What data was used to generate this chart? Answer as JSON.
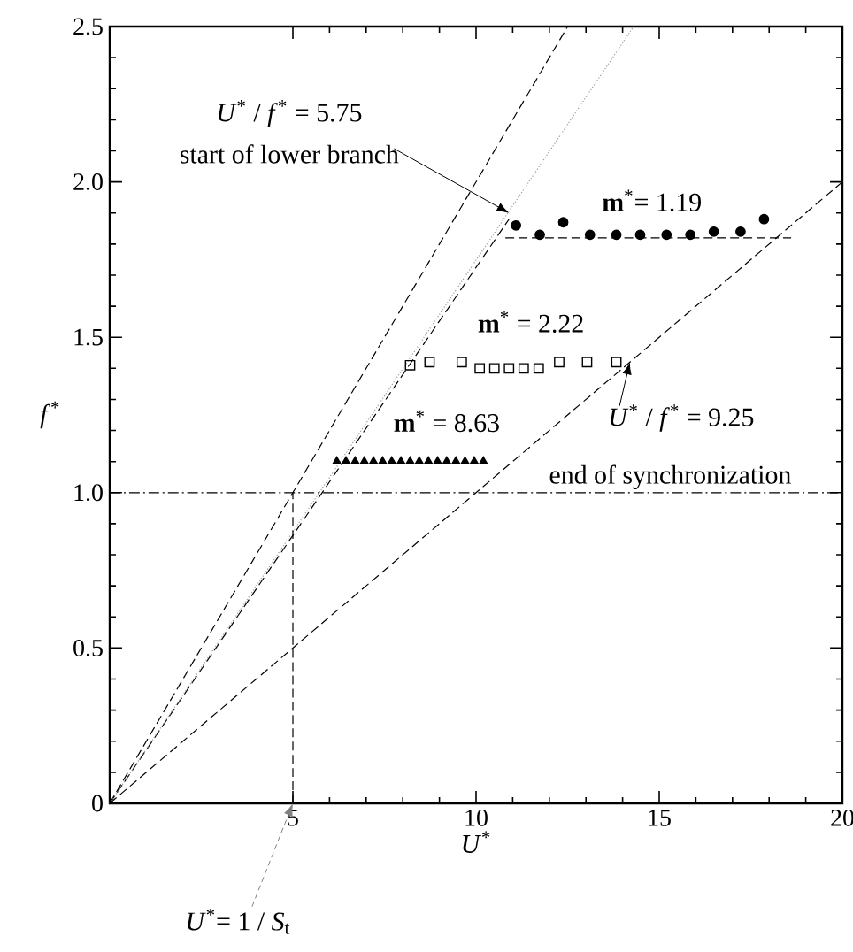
{
  "chart_data": {
    "type": "scatter",
    "xlabel": "*U*$^{*}$",
    "ylabel": "*f*$^{*}$",
    "xlim": [
      0,
      20
    ],
    "ylim": [
      0,
      2.5
    ],
    "xticks": [
      5,
      10,
      15,
      20
    ],
    "yticks": [
      0,
      0.5,
      {
        "value": 1,
        "label": "1.0"
      },
      1.5,
      {
        "value": 2,
        "label": "2.0"
      },
      2.5
    ],
    "grid": false,
    "series": [
      {
        "type": "line",
        "line_style": "dashed",
        "color": "#000000",
        "x": [
          0,
          12.5
        ],
        "values": [
          0,
          2.5
        ]
      },
      {
        "type": "line",
        "line_style": "dashed",
        "color": "#000000",
        "x": [
          0,
          10.9
        ],
        "values": [
          0,
          1.88
        ]
      },
      {
        "type": "line",
        "line_style": "dotted",
        "color": "#999999",
        "x": [
          0,
          14.3
        ],
        "values": [
          0,
          2.5
        ]
      },
      {
        "type": "line",
        "line_style": "dashed",
        "color": "#000000",
        "x": [
          0,
          20
        ],
        "values": [
          0,
          2.0
        ]
      },
      {
        "type": "line",
        "line_style": "dashed",
        "color": "#000000",
        "x": [
          10.8,
          18.6
        ],
        "values": [
          1.82,
          1.82
        ]
      },
      {
        "marker": "circle",
        "color": "#000000",
        "x": [
          11.09,
          11.74,
          12.38,
          13.11,
          13.83,
          14.48,
          15.2,
          15.85,
          16.49,
          17.22,
          17.86
        ],
        "values": [
          1.86,
          1.83,
          1.87,
          1.83,
          1.83,
          1.83,
          1.83,
          1.83,
          1.84,
          1.84,
          1.88
        ]
      },
      {
        "marker": "square",
        "color": "#000000",
        "x": [
          8.2,
          8.73,
          9.61,
          10.1,
          10.5,
          10.9,
          11.3,
          11.71,
          12.27,
          13.03,
          13.83
        ],
        "values": [
          1.41,
          1.42,
          1.42,
          1.4,
          1.4,
          1.4,
          1.4,
          1.4,
          1.42,
          1.42,
          1.42
        ]
      },
      {
        "marker": "triangle",
        "color": "#000000",
        "x": [
          6.2,
          6.45,
          6.7,
          6.95,
          7.2,
          7.45,
          7.7,
          7.95,
          8.2,
          8.45,
          8.7,
          8.95,
          9.2,
          9.45,
          9.7,
          9.95,
          10.2
        ],
        "values": [
          1.1,
          1.1,
          1.1,
          1.1,
          1.1,
          1.1,
          1.1,
          1.1,
          1.1,
          1.1,
          1.1,
          1.1,
          1.1,
          1.1,
          1.1,
          1.1,
          1.1
        ]
      }
    ],
    "ref_lines": [
      {
        "axis": "y",
        "value": 1,
        "line_style": "dashdot",
        "color": "#000000"
      },
      {
        "axis": "x",
        "value": 5,
        "line_style": "dashed",
        "color": "#000000"
      }
    ],
    "annotations": [
      "*U*$^{*}$ / *f*$^{*}$ = 5.75",
      {
        "text": "start of lower branch",
        "x": 10.9,
        "y": 1.9
      },
      "**m**$^{*}$= 1.19",
      "**m**$^{*}$ = 2.22",
      "**m**$^{*}$ = 8.63",
      {
        "text": "*U*$^{*}$ / *f*$^{*}$ = 9.25",
        "x": 14.2,
        "y": 1.42
      },
      "end of synchronization",
      {
        "text": "*U*$^{*}$= 1 / *S*$_{t}$",
        "x": 5,
        "y": 0
      }
    ]
  }
}
